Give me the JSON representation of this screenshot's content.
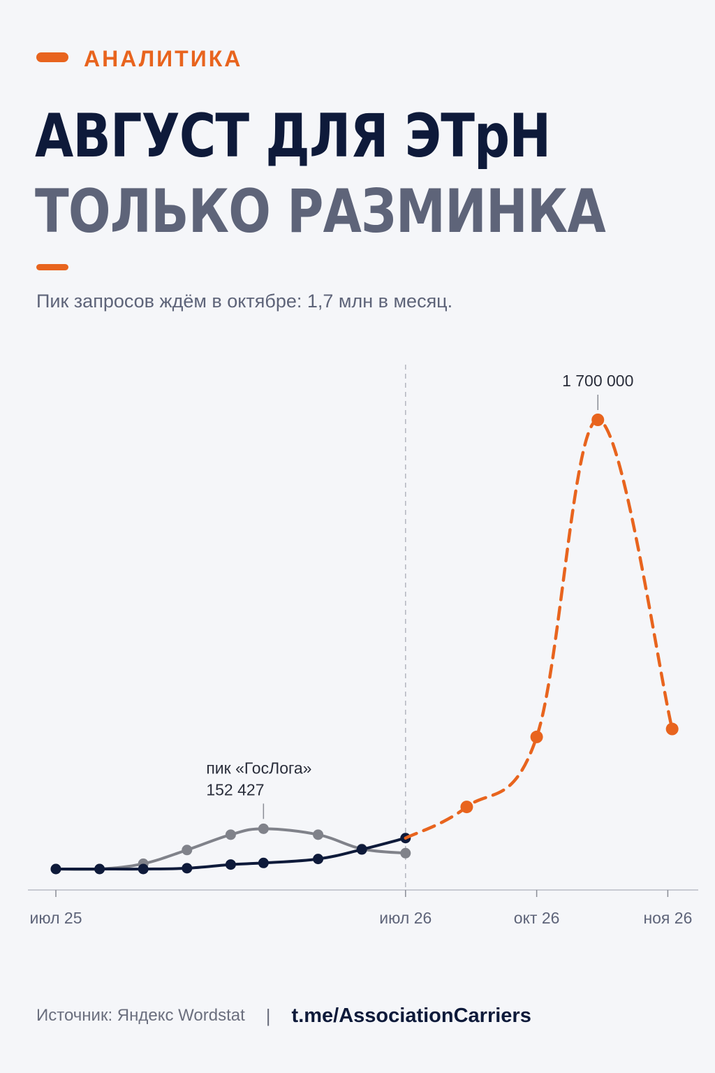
{
  "header": {
    "tag": "АНАЛИТИКА",
    "title_line1": "АВГУСТ ДЛЯ ЭТрН",
    "title_line2": "ТОЛЬКО РАЗМИНКА",
    "subtitle": "Пик запросов ждём в октябре: 1,7 млн в месяц."
  },
  "colors": {
    "accent": "#e8641e",
    "navy": "#0e1a3a",
    "gray_series": "#80828a",
    "muted_text": "#5e6479"
  },
  "chart_data": {
    "type": "line",
    "x_axis_ticks": [
      "июл 25",
      "июл 26",
      "окт 26",
      "ноя 26"
    ],
    "divider_at": "июл 26",
    "series": [
      {
        "style": "gray",
        "points": [
          [
            0,
            0
          ],
          [
            1,
            0
          ],
          [
            2,
            20000
          ],
          [
            3,
            72000
          ],
          [
            4,
            130000
          ],
          [
            4.75,
            152427
          ],
          [
            6,
            130000
          ],
          [
            7,
            76000
          ],
          [
            8,
            60000
          ]
        ]
      },
      {
        "style": "navy",
        "points": [
          [
            0,
            0
          ],
          [
            1,
            0
          ],
          [
            2,
            0
          ],
          [
            3,
            3000
          ],
          [
            4,
            17000
          ],
          [
            4.75,
            23000
          ],
          [
            6,
            38000
          ],
          [
            7,
            74000
          ],
          [
            8,
            117000
          ]
        ]
      },
      {
        "style": "orange-dashed",
        "points": [
          [
            8,
            117000
          ],
          [
            9.4,
            235000
          ],
          [
            11,
            500000
          ],
          [
            12.4,
            1700000
          ],
          [
            14.1,
            530000
          ]
        ]
      }
    ],
    "annotations": [
      {
        "lines": [
          "пик «ГосЛога»",
          "152 427"
        ],
        "x": 4.75,
        "y": 152427
      },
      {
        "lines": [
          "1 700 000"
        ],
        "x": 12.4,
        "y": 1700000
      }
    ]
  },
  "footer": {
    "source": "Источник: Яндекс Wordstat",
    "separator": "|",
    "link": "t.me/AssociationCarriers"
  }
}
